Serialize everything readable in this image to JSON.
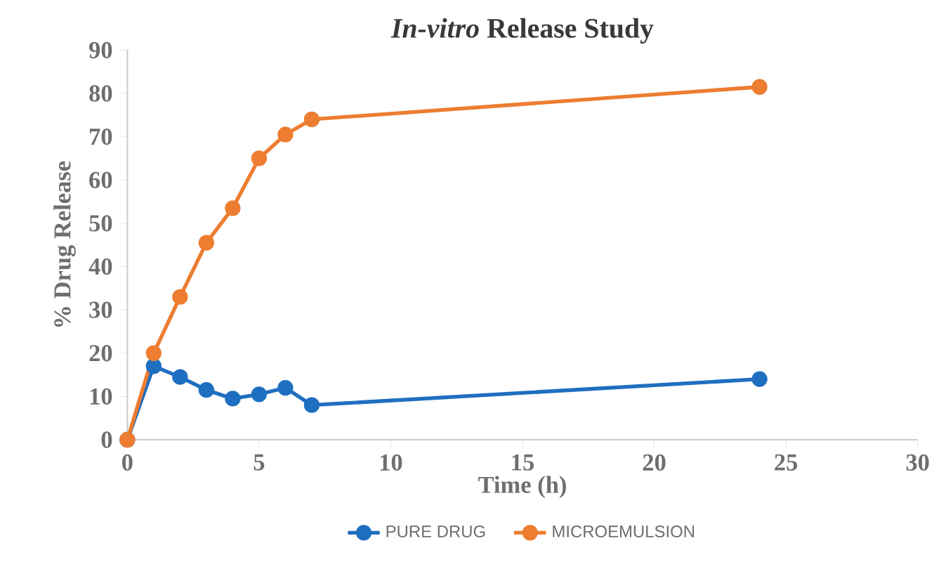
{
  "chart_data": {
    "type": "line",
    "title": "*In-vitro* Release Study",
    "xlabel": "Time (h)",
    "ylabel": "% Drug Release",
    "x": [
      0,
      1,
      2,
      3,
      4,
      5,
      6,
      7,
      24
    ],
    "series": [
      {
        "name": "PURE DRUG",
        "color": "#1f6fc0",
        "values": [
          0,
          17,
          14.5,
          11.5,
          9.5,
          10.5,
          12,
          8,
          14
        ]
      },
      {
        "name": "MICROEMULSION",
        "color": "#ed7d31",
        "values": [
          0,
          20,
          33,
          45.5,
          53.5,
          65,
          70.5,
          74,
          81.5
        ]
      }
    ],
    "xlim": [
      0,
      30
    ],
    "ylim": [
      0,
      90
    ],
    "xticks": [
      0,
      5,
      10,
      15,
      20,
      25,
      30
    ],
    "yticks": [
      0,
      10,
      20,
      30,
      40,
      50,
      60,
      70,
      80,
      90
    ],
    "grid": false,
    "legend": "bottom",
    "marker": "circle",
    "line_style": "solid"
  }
}
